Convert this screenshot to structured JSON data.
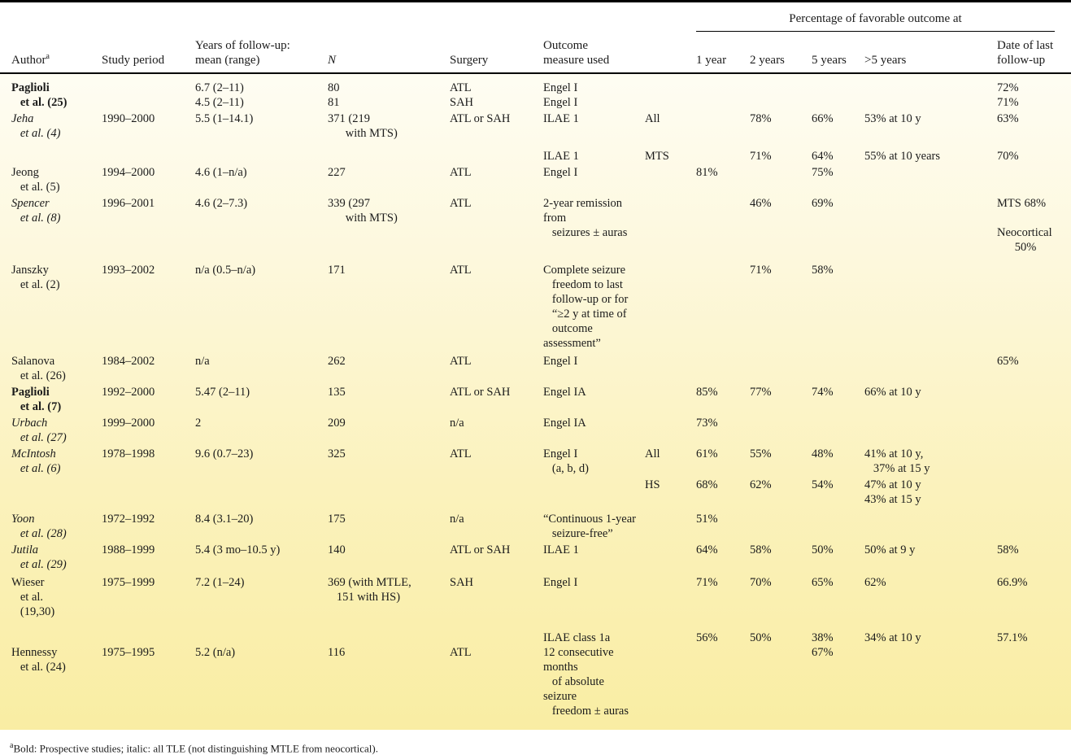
{
  "header": {
    "span_title": "Percentage of favorable outcome at",
    "columns": {
      "author": "Author",
      "author_sup": "a",
      "period": "Study period",
      "followup": "Years of follow-up:\nmean (range)",
      "n": "N",
      "surgery": "Surgery",
      "outcome": "Outcome\nmeasure used",
      "group": "",
      "y1": "1 year",
      "y2": "2 years",
      "y5": "5 years",
      "gt5": ">5 years",
      "last": "Date of last\nfollow-up"
    }
  },
  "rows": [
    {
      "name": "paglioli-25",
      "style": "bold",
      "pad": 0,
      "cells": {
        "author": "Paglioli\n   et al. (25)",
        "period": "",
        "followup": "6.7 (2–11)\n4.5 (2–11)",
        "n": "80\n81",
        "surgery": "ATL\nSAH",
        "outcome": "Engel I\nEngel I",
        "group": "",
        "y1": "",
        "y2": "",
        "y5": "",
        "gt5": "",
        "last": "72%\n71%"
      }
    },
    {
      "name": "jeha-4",
      "style": "italic",
      "pad": 0,
      "cells": {
        "author": "Jeha\n   et al. (4)",
        "period": "1990–2000",
        "followup": "5.5 (1–14.1)",
        "n": "371 (219\n      with MTS)",
        "surgery": "ATL or SAH",
        "outcome": "ILAE 1",
        "group": "All",
        "y1": "",
        "y2": "78%",
        "y5": "66%",
        "gt5": "53% at 10 y",
        "last": "63%"
      }
    },
    {
      "name": "jeha-4-mts",
      "style": "italic",
      "pad": 10,
      "cells": {
        "author": "",
        "period": "",
        "followup": "",
        "n": "",
        "surgery": "",
        "outcome": "ILAE 1",
        "group": "MTS",
        "y1": "",
        "y2": "71%",
        "y5": "64%",
        "gt5": "55% at 10 years",
        "last": "70%"
      }
    },
    {
      "name": "jeong-5",
      "style": "roman",
      "pad": 2,
      "cells": {
        "author": "Jeong\n   et al. (5)",
        "period": "1994–2000",
        "followup": "4.6 (1–n/a)",
        "n": "227",
        "surgery": "ATL",
        "outcome": "Engel I",
        "group": "",
        "y1": "81%",
        "y2": "",
        "y5": "75%",
        "gt5": "",
        "last": ""
      }
    },
    {
      "name": "spencer-8",
      "style": "italic",
      "pad": 2,
      "cells": {
        "author": "Spencer\n   et al. (8)",
        "period": "1996–2001",
        "followup": "4.6 (2–7.3)",
        "n": "339 (297\n      with MTS)",
        "surgery": "ATL",
        "outcome": "2-year remission from\n   seizures ± auras",
        "group": "",
        "y1": "",
        "y2": "46%",
        "y5": "69%",
        "gt5": "",
        "last": "MTS 68%\n\nNeocortical\n      50%"
      }
    },
    {
      "name": "janszky-2",
      "style": "roman",
      "pad": 10,
      "cells": {
        "author": "Janszky\n   et al. (2)",
        "period": "1993–2002",
        "followup": "n/a (0.5–n/a)",
        "n": "171",
        "surgery": "ATL",
        "outcome": "Complete seizure\n   freedom to last\n   follow-up or for\n   “≥2 y at time of\n   outcome assessment”",
        "group": "",
        "y1": "",
        "y2": "71%",
        "y5": "58%",
        "gt5": "",
        "last": ""
      }
    },
    {
      "name": "salanova-26",
      "style": "roman",
      "pad": 4,
      "cells": {
        "author": "Salanova\n   et al. (26)",
        "period": "1984–2002",
        "followup": "n/a",
        "n": "262",
        "surgery": "ATL",
        "outcome": "Engel I",
        "group": "",
        "y1": "",
        "y2": "",
        "y5": "",
        "gt5": "",
        "last": "65%"
      }
    },
    {
      "name": "paglioli-7",
      "style": "bold",
      "pad": 2,
      "cells": {
        "author": "Paglioli\n   et al. (7)",
        "period": "1992–2000",
        "followup": "5.47 (2–11)",
        "n": "135",
        "surgery": "ATL or SAH",
        "outcome": "Engel IA",
        "group": "",
        "y1": "85%",
        "y2": "77%",
        "y5": "74%",
        "gt5": "66% at 10 y",
        "last": ""
      }
    },
    {
      "name": "urbach-27",
      "style": "italic",
      "pad": 2,
      "cells": {
        "author": "Urbach\n   et al. (27)",
        "period": "1999–2000",
        "followup": "2",
        "n": "209",
        "surgery": "n/a",
        "outcome": "Engel IA",
        "group": "",
        "y1": "73%",
        "y2": "",
        "y5": "",
        "gt5": "",
        "last": ""
      }
    },
    {
      "name": "mcintosh-6-all",
      "style": "italic",
      "pad": 2,
      "cells": {
        "author": "McIntosh\n   et al. (6)",
        "period": "1978–1998",
        "followup": "9.6 (0.7–23)",
        "n": "325",
        "surgery": "ATL",
        "outcome": "Engel I\n   (a, b, d)",
        "group": "All",
        "y1": "61%",
        "y2": "55%",
        "y5": "48%",
        "gt5": "41% at 10 y,\n   37% at 15 y",
        "last": ""
      }
    },
    {
      "name": "mcintosh-6-hs",
      "style": "italic",
      "pad": 0,
      "cells": {
        "author": "",
        "period": "",
        "followup": "",
        "n": "",
        "surgery": "",
        "outcome": "",
        "group": "HS",
        "y1": "68%",
        "y2": "62%",
        "y5": "54%",
        "gt5": "47% at 10 y\n43% at 15 y",
        "last": ""
      }
    },
    {
      "name": "yoon-28",
      "style": "italic",
      "pad": 6,
      "cells": {
        "author": "Yoon\n   et al. (28)",
        "period": "1972–1992",
        "followup": "8.4 (3.1–20)",
        "n": "175",
        "surgery": "n/a",
        "outcome": "“Continuous 1-year\n   seizure-free”",
        "group": "",
        "y1": "51%",
        "y2": "",
        "y5": "",
        "gt5": "",
        "last": ""
      }
    },
    {
      "name": "jutila-29",
      "style": "italic",
      "pad": 2,
      "cells": {
        "author": "Jutila\n   et al. (29)",
        "period": "1988–1999",
        "followup": "5.4 (3 mo–10.5 y)",
        "n": "140",
        "surgery": "ATL or SAH",
        "outcome": "ILAE 1",
        "group": "",
        "y1": "64%",
        "y2": "58%",
        "y5": "50%",
        "gt5": "50% at 9 y",
        "last": "58%"
      }
    },
    {
      "name": "wieser-19-30",
      "style": "roman",
      "pad": 4,
      "cells": {
        "author": "Wieser\n   et al.\n   (19,30)",
        "period": "1975–1999",
        "followup": "7.2 (1–24)",
        "n": "369 (with MTLE,\n   151 with HS)",
        "surgery": "SAH",
        "outcome": "Engel I",
        "group": "",
        "y1": "71%",
        "y2": "70%",
        "y5": "65%",
        "gt5": "62%",
        "last": "66.9%"
      }
    },
    {
      "name": "hennessy-24",
      "style": "roman",
      "pad": 14,
      "cells": {
        "author": "\nHennessy\n   et al. (24)",
        "period": "\n1975–1995",
        "followup": "\n5.2 (n/a)",
        "n": "\n116",
        "surgery": "\nATL",
        "outcome": "ILAE class 1a\n12 consecutive months\n   of absolute seizure\n   freedom ± auras",
        "group": "",
        "y1": "56%",
        "y2": "50%",
        "y5": "38%\n67%",
        "gt5": "34% at 10 y",
        "last": "57.1%"
      }
    }
  ],
  "footnote": {
    "marker": "a",
    "text": "Bold: Prospective studies; italic: all TLE (not distinguishing MTLE from neocortical)."
  },
  "colors": {
    "rule": "#000000",
    "text": "#1b1b1b",
    "body_gradient_top": "#fefdf3",
    "body_gradient_bottom": "#f9eda3"
  }
}
